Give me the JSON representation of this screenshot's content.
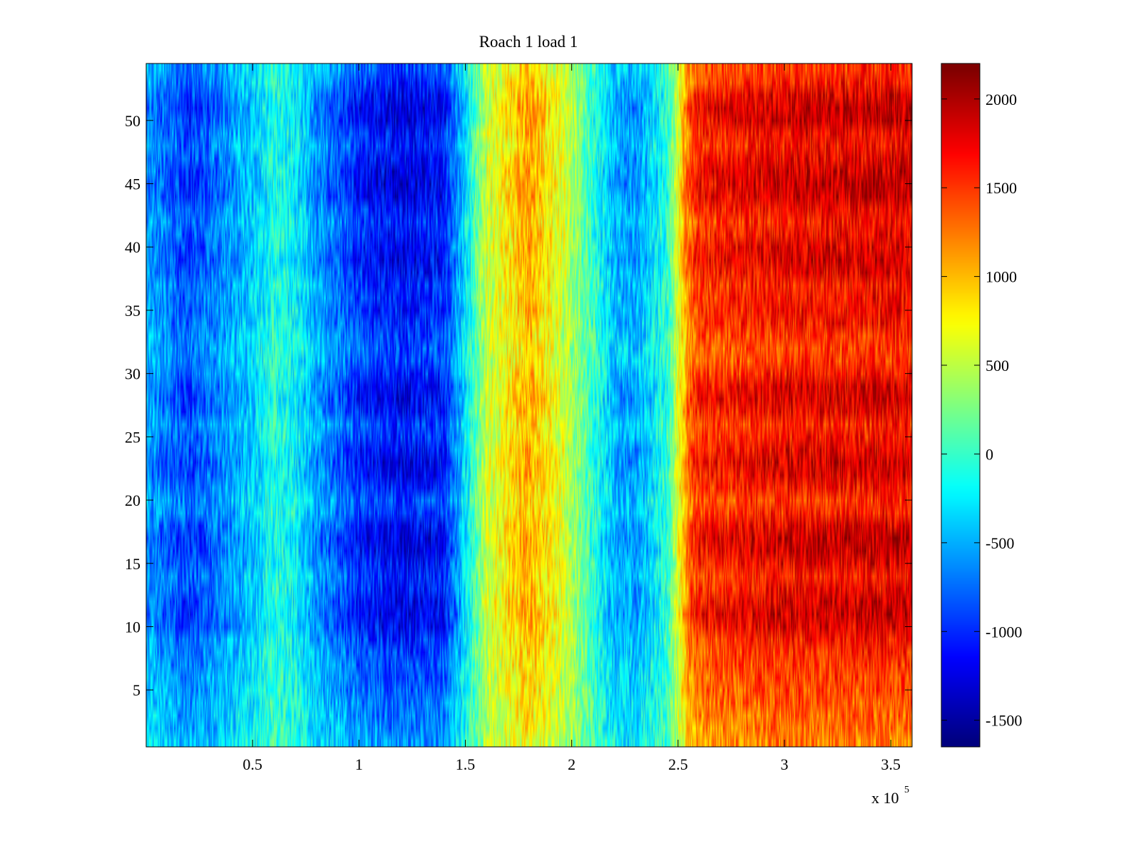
{
  "chart_data": {
    "type": "heatmap",
    "title": "Roach 1 load 1",
    "xlabel": "",
    "ylabel": "",
    "x_exponent_label": "x 10",
    "x_exponent_power": "5",
    "xlim": [
      0,
      3.6
    ],
    "ylim": [
      0.5,
      54.5
    ],
    "x_ticks": [
      0.5,
      1,
      1.5,
      2,
      2.5,
      3,
      3.5
    ],
    "x_tick_labels": [
      "0.5",
      "1",
      "1.5",
      "2",
      "2.5",
      "3",
      "3.5"
    ],
    "y_ticks": [
      5,
      10,
      15,
      20,
      25,
      30,
      35,
      40,
      45,
      50
    ],
    "y_tick_labels": [
      "5",
      "10",
      "15",
      "20",
      "25",
      "30",
      "35",
      "40",
      "45",
      "50"
    ],
    "rows": 54,
    "colormap": "jet",
    "clim": [
      -1650,
      2200
    ],
    "colorbar_ticks": [
      -1500,
      -1000,
      -500,
      0,
      500,
      1000,
      1500,
      2000
    ],
    "colorbar_tick_labels": [
      "-1500",
      "-1000",
      "-500",
      "0",
      "500",
      "1000",
      "1500",
      "2000"
    ],
    "profile_x": [
      0.0,
      0.2,
      0.5,
      0.6,
      0.7,
      0.8,
      1.0,
      1.2,
      1.4,
      1.5,
      1.6,
      1.8,
      1.95,
      2.05,
      2.2,
      2.3,
      2.45,
      2.55,
      2.6,
      3.0,
      3.6
    ],
    "profile_values": [
      -700,
      -1100,
      -500,
      -150,
      -300,
      -700,
      -1200,
      -1400,
      -1250,
      -400,
      600,
      1200,
      700,
      200,
      -600,
      -700,
      -100,
      1500,
      1800,
      2000,
      2050
    ],
    "row_strength": [
      0.55,
      0.6,
      0.62,
      0.65,
      0.68,
      0.7,
      0.72,
      0.75,
      0.8,
      0.9,
      0.95,
      0.92,
      0.85,
      0.8,
      0.88,
      0.95,
      0.97,
      0.9,
      0.78,
      0.74,
      0.82,
      0.9,
      0.93,
      0.88,
      0.8,
      0.76,
      0.86,
      0.92,
      0.9,
      0.8,
      0.72,
      0.7,
      0.74,
      0.8,
      0.84,
      0.82,
      0.8,
      0.88,
      0.92,
      0.9,
      0.85,
      0.8,
      0.86,
      0.95,
      0.97,
      0.94,
      0.88,
      0.82,
      0.86,
      0.95,
      0.96,
      0.9,
      0.8,
      0.72
    ]
  }
}
